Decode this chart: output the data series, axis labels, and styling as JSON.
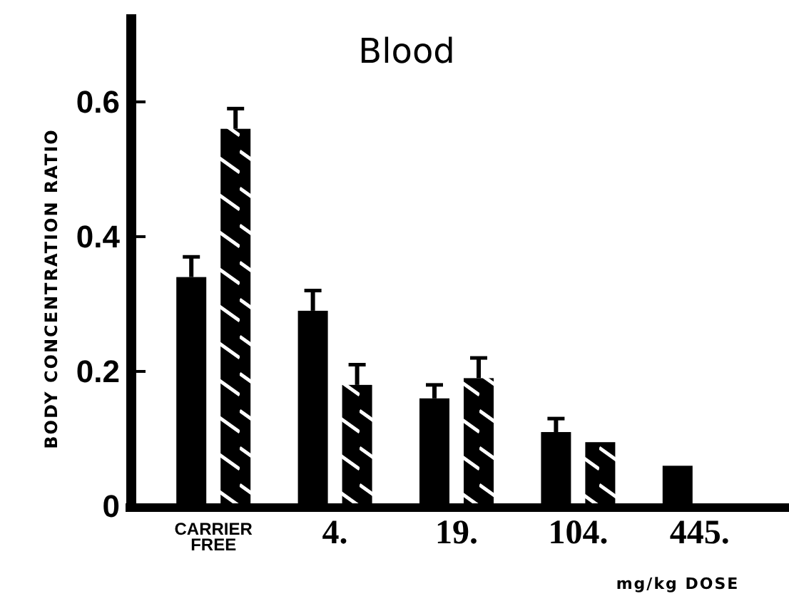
{
  "chart_data": {
    "type": "bar",
    "title": "Blood",
    "xlabel": "mg/kg DOSE",
    "ylabel": "BODY CONCENTRATION RATIO",
    "categories": [
      "CARRIER FREE",
      "4.",
      "19.",
      "104.",
      "445."
    ],
    "series": [
      {
        "color": "#000000",
        "values": [
          0.34,
          0.29,
          0.16,
          0.11,
          0.06
        ],
        "errors": [
          [
            0.34,
            0.37
          ],
          [
            0.29,
            0.32
          ],
          [
            0.16,
            0.18
          ],
          [
            0.11,
            0.13
          ],
          null
        ]
      },
      {
        "color": "#000000",
        "values": [
          0.56,
          0.18,
          0.19,
          0.095,
          null
        ],
        "errors": [
          [
            0.56,
            0.59
          ],
          [
            0.18,
            0.21
          ],
          [
            0.19,
            0.22
          ],
          null,
          null
        ]
      }
    ],
    "ylim": [
      0,
      0.73
    ],
    "yticks": [
      0,
      0.2,
      0.4,
      0.6
    ],
    "grid": false
  }
}
